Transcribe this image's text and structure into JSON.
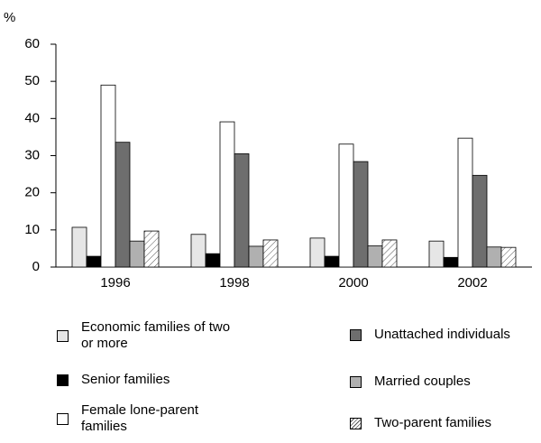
{
  "chart_data": {
    "type": "bar",
    "y_label": "%",
    "categories": [
      "1996",
      "1998",
      "2000",
      "2002"
    ],
    "ylim": [
      0,
      60
    ],
    "yticks": [
      0,
      10,
      20,
      30,
      40,
      50,
      60
    ],
    "series": [
      {
        "name": "Economic families of two or more",
        "color": "#e6e6e6",
        "values": [
          10.7,
          8.8,
          7.8,
          7.0
        ]
      },
      {
        "name": "Senior families",
        "color": "#000000",
        "values": [
          2.9,
          3.6,
          2.9,
          2.6
        ]
      },
      {
        "name": "Female lone-parent families",
        "color": "#ffffff",
        "values": [
          49,
          39.1,
          33.1,
          34.7
        ]
      },
      {
        "name": "Unattached individuals",
        "color": "#6e6e6e",
        "values": [
          33.6,
          30.5,
          28.4,
          24.7
        ]
      },
      {
        "name": "Married couples",
        "color": "#b0b0b0",
        "values": [
          7.0,
          5.6,
          5.7,
          5.4
        ]
      },
      {
        "name": "Two-parent families",
        "color": "#ffffff",
        "hatch": true,
        "values": [
          9.7,
          7.3,
          7.3,
          5.3
        ]
      }
    ]
  }
}
